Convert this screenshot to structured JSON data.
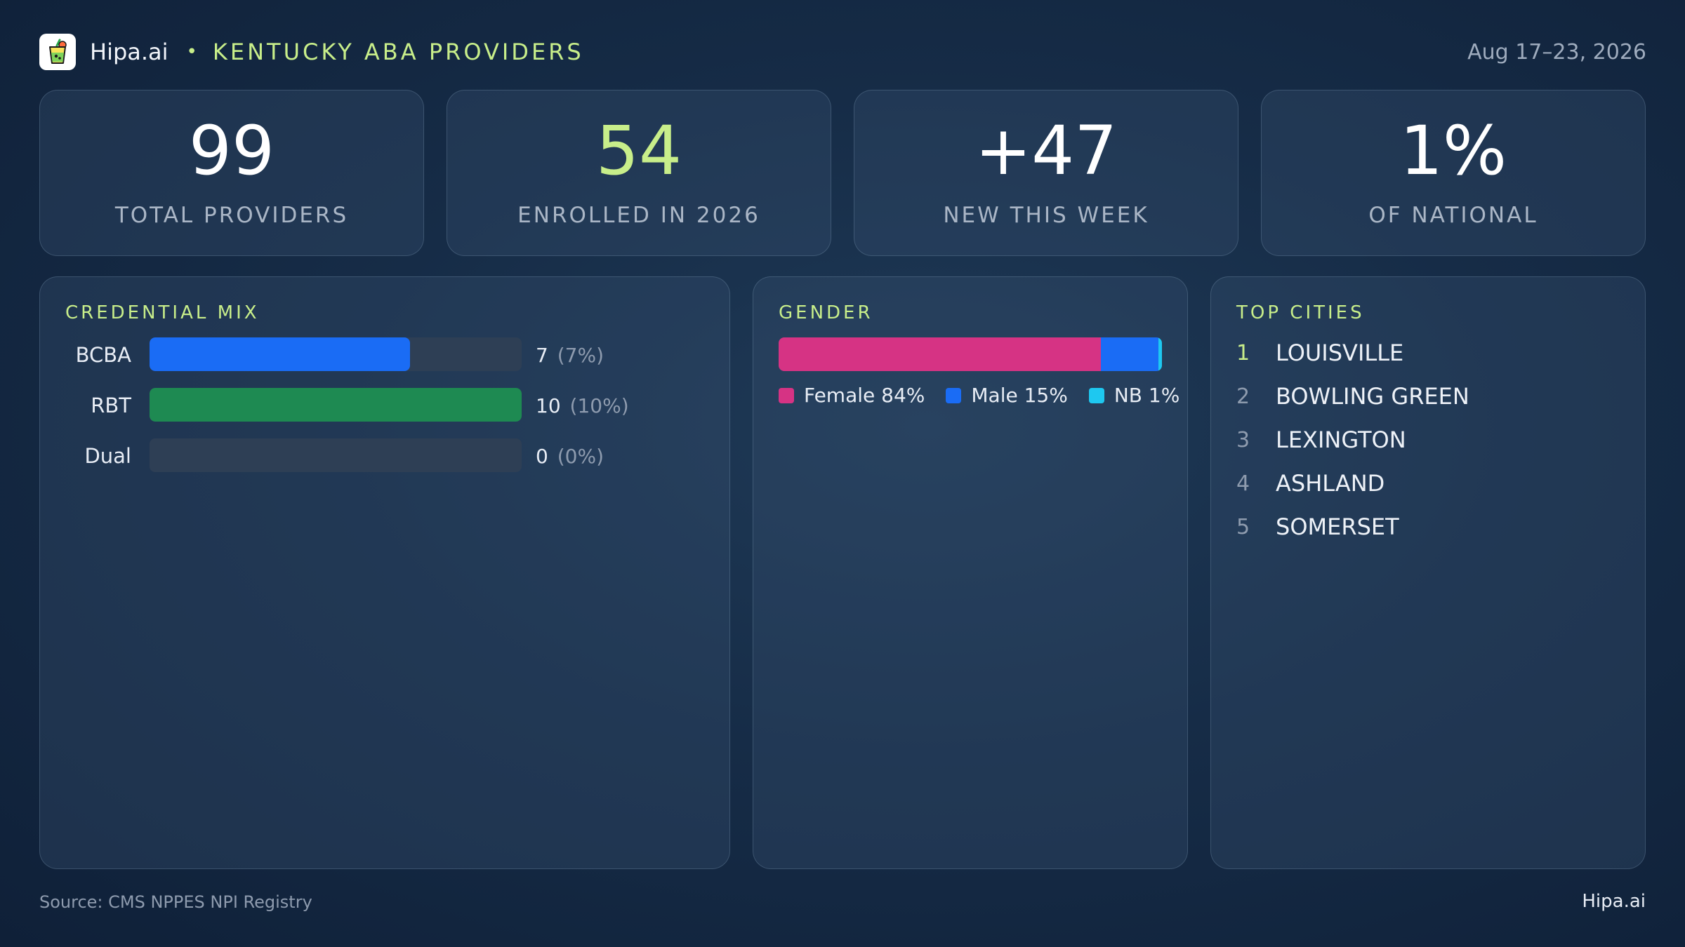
{
  "header": {
    "brand": "Hipa.ai",
    "separator": "•",
    "title": "KENTUCKY ABA PROVIDERS",
    "date_range": "Aug 17–23, 2026"
  },
  "kpis": [
    {
      "value": "99",
      "label": "TOTAL PROVIDERS"
    },
    {
      "value": "54",
      "label": "ENROLLED IN 2026"
    },
    {
      "value": "+47",
      "label": "NEW THIS WEEK"
    },
    {
      "value": "1%",
      "label": "OF NATIONAL"
    }
  ],
  "credential_mix": {
    "title": "CREDENTIAL MIX",
    "rows": [
      {
        "label": "BCBA",
        "count": "7",
        "pct": "(7%)",
        "fill_fraction": 0.7,
        "color": "#1a6cf5"
      },
      {
        "label": "RBT",
        "count": "10",
        "pct": "(10%)",
        "fill_fraction": 1.0,
        "color": "#1e8a52"
      },
      {
        "label": "Dual",
        "count": "0",
        "pct": "(0%)",
        "fill_fraction": 0.0,
        "color": "#1a6cf5"
      }
    ]
  },
  "gender": {
    "title": "GENDER",
    "segments": [
      {
        "label": "Female 84%",
        "percent": 84,
        "color": "#d63384"
      },
      {
        "label": "Male 15%",
        "percent": 15,
        "color": "#1a6cf5"
      },
      {
        "label": "NB 1%",
        "percent": 1,
        "color": "#1ec8f0"
      }
    ]
  },
  "top_cities": {
    "title": "TOP CITIES",
    "items": [
      {
        "rank": "1",
        "name": "LOUISVILLE"
      },
      {
        "rank": "2",
        "name": "BOWLING GREEN"
      },
      {
        "rank": "3",
        "name": "LEXINGTON"
      },
      {
        "rank": "4",
        "name": "ASHLAND"
      },
      {
        "rank": "5",
        "name": "SOMERSET"
      }
    ]
  },
  "footer": {
    "source": "Source: CMS NPPES NPI Registry",
    "brand": "Hipa.ai"
  },
  "colors": {
    "accent": "#c8ee8a",
    "background": "#162c47"
  },
  "icons": {
    "logo": "drink-cup-icon"
  }
}
